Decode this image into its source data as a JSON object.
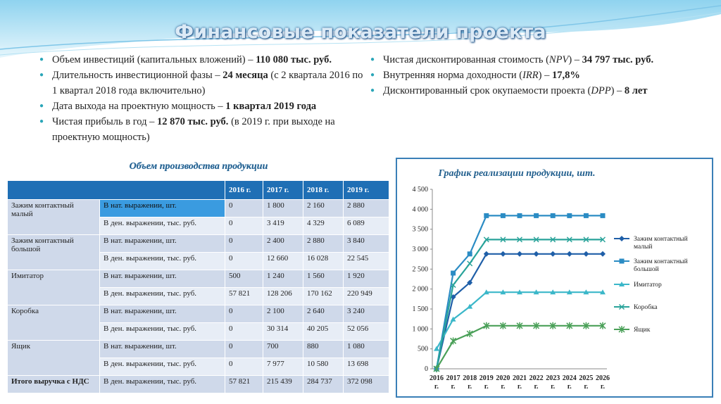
{
  "title": "Финансовые показатели проекта",
  "bullets_left": [
    {
      "pre": "Объем инвестиций (капитальных вложений) – ",
      "bold": "110 080 тыс. руб.",
      "post": ""
    },
    {
      "pre": "Длительность инвестиционной фазы – ",
      "bold": "24 месяца",
      "post": " (с 2 квартала 2016 по 1 квартал 2018 года включительно)"
    },
    {
      "pre": "Дата выхода на проектную мощность – ",
      "bold": "1 квартал 2019 года",
      "post": ""
    },
    {
      "pre": "Чистая прибыль в год – ",
      "bold": "12 870 тыс. руб.",
      "post": " (в 2019 г. при выходе на проектную мощность)"
    }
  ],
  "bullets_right": [
    {
      "pre": "Чистая дисконтированная стоимость (",
      "ital": "NPV",
      "mid": ") – ",
      "bold": "34 797 тыс. руб."
    },
    {
      "pre": "Внутренняя норма доходности (",
      "ital": "IRR",
      "mid": ") – ",
      "bold": "17,8%"
    },
    {
      "pre": "Дисконтированный срок окупаемости проекта (",
      "ital": "DPP",
      "mid": ") – ",
      "bold": "8 лет"
    }
  ],
  "table": {
    "title": "Объем производства продукции",
    "years": [
      "2016 г.",
      "2017 г.",
      "2018 г.",
      "2019 г."
    ],
    "products": [
      {
        "name": "Зажим контактный малый",
        "rows": [
          {
            "unit": "В нат. выражении, шт.",
            "values": [
              "0",
              "1 800",
              "2 160",
              "2 880"
            ]
          },
          {
            "unit": "В ден. выражении, тыс. руб.",
            "values": [
              "0",
              "3 419",
              "4 329",
              "6 089"
            ]
          }
        ]
      },
      {
        "name": "Зажим контактный большой",
        "rows": [
          {
            "unit": "В нат. выражении, шт.",
            "values": [
              "0",
              "2 400",
              "2 880",
              "3 840"
            ]
          },
          {
            "unit": "В ден. выражении, тыс. руб.",
            "values": [
              "0",
              "12 660",
              "16 028",
              "22 545"
            ]
          }
        ]
      },
      {
        "name": "Имитатор",
        "rows": [
          {
            "unit": "В нат. выражении, шт.",
            "values": [
              "500",
              "1 240",
              "1 560",
              "1 920"
            ]
          },
          {
            "unit": "В ден. выражении, тыс. руб.",
            "values": [
              "57 821",
              "128 206",
              "170 162",
              "220 949"
            ]
          }
        ]
      },
      {
        "name": "Коробка",
        "rows": [
          {
            "unit": "В нат. выражении, шт.",
            "values": [
              "0",
              "2 100",
              "2 640",
              "3 240"
            ]
          },
          {
            "unit": "В ден. выражении, тыс. руб.",
            "values": [
              "0",
              "30 314",
              "40 205",
              "52 056"
            ]
          }
        ]
      },
      {
        "name": "Ящик",
        "rows": [
          {
            "unit": "В нат. выражении, шт.",
            "values": [
              "0",
              "700",
              "880",
              "1 080"
            ]
          },
          {
            "unit": "В ден. выражении, тыс. руб.",
            "values": [
              "0",
              "7 977",
              "10 580",
              "13 698"
            ]
          }
        ]
      }
    ],
    "total": {
      "name": "Итого выручка с НДС",
      "unit": "В ден. выражении, тыс. руб.",
      "values": [
        "57 821",
        "215 439",
        "284 737",
        "372 098"
      ]
    }
  },
  "chart_data": {
    "type": "line",
    "title": "График реализации продукции, шт.",
    "xlabel": "",
    "ylabel": "",
    "x": [
      "2016 г.",
      "2017 г.",
      "2018 г.",
      "2019 г.",
      "2020 г.",
      "2021 г.",
      "2022 г.",
      "2023 г.",
      "2024 г.",
      "2025 г.",
      "2026 г."
    ],
    "ylim": [
      0,
      4500
    ],
    "yticks": [
      "0",
      "500",
      "1 000",
      "1 500",
      "2 000",
      "2 500",
      "3 000",
      "3 500",
      "4 000",
      "4 500"
    ],
    "grid": false,
    "legend": "right",
    "series": [
      {
        "name": "Зажим контактный малый",
        "color": "#1f5fa8",
        "marker": "diamond",
        "values": [
          0,
          1800,
          2160,
          2880,
          2880,
          2880,
          2880,
          2880,
          2880,
          2880,
          2880
        ]
      },
      {
        "name": "Зажим контактный большой",
        "color": "#2b8cc4",
        "marker": "square",
        "values": [
          0,
          2400,
          2880,
          3840,
          3840,
          3840,
          3840,
          3840,
          3840,
          3840,
          3840
        ]
      },
      {
        "name": "Имитатор",
        "color": "#3bb7c9",
        "marker": "triangle",
        "values": [
          500,
          1240,
          1560,
          1920,
          1920,
          1920,
          1920,
          1920,
          1920,
          1920,
          1920
        ]
      },
      {
        "name": "Коробка",
        "color": "#29a39a",
        "marker": "x",
        "values": [
          0,
          2100,
          2640,
          3240,
          3240,
          3240,
          3240,
          3240,
          3240,
          3240,
          3240
        ]
      },
      {
        "name": "Ящик",
        "color": "#4aa058",
        "marker": "star",
        "values": [
          0,
          700,
          880,
          1080,
          1080,
          1080,
          1080,
          1080,
          1080,
          1080,
          1080
        ]
      }
    ]
  }
}
